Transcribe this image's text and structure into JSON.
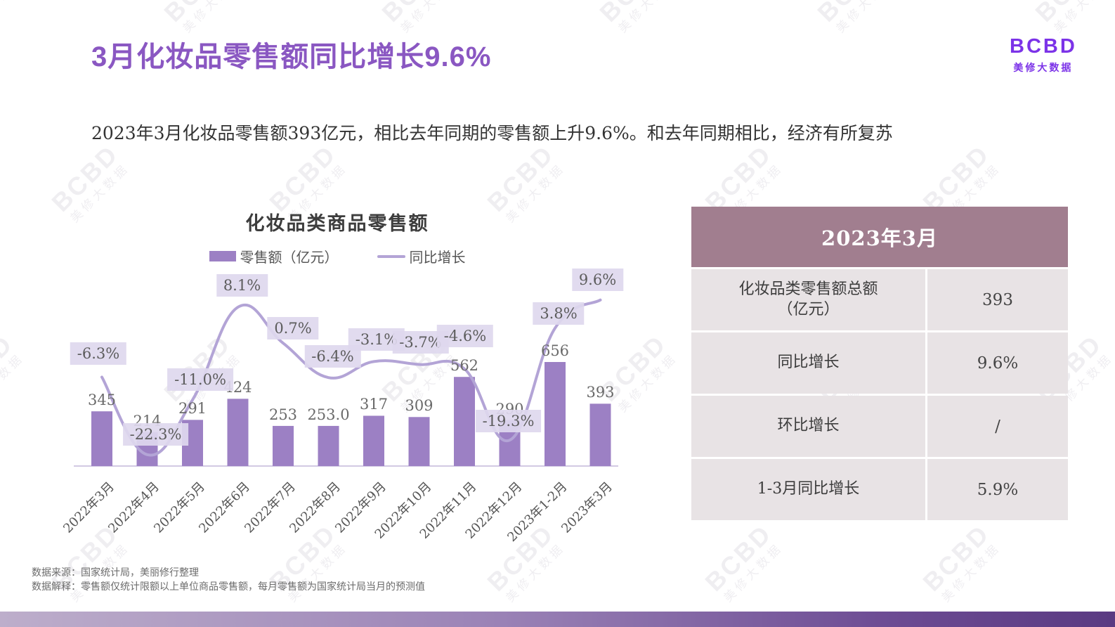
{
  "header": {
    "title": "3月化妆品零售额同比增长9.6%",
    "logo": {
      "brand": "BCBD",
      "subbrand": "美修大数据"
    }
  },
  "subtitle": "2023年3月化妆品零售额393亿元，相比去年同期的零售额上升9.6%。和去年同期相比，经济有所复苏",
  "watermark": {
    "brand": "BCBD",
    "subbrand": "美修大数据"
  },
  "chart_data": {
    "type": "bar",
    "title": "化妆品类商品零售额",
    "categories": [
      "2022年3月",
      "2022年4月",
      "2022年5月",
      "2022年6月",
      "2022年7月",
      "2022年8月",
      "2022年9月",
      "2022年10月",
      "2022年11月",
      "2022年12月",
      "2023年1-2月",
      "2023年3月"
    ],
    "series": [
      {
        "name": "零售额（亿元）",
        "type": "bar",
        "values": [
          345,
          214,
          291,
          424,
          253,
          253.0,
          317,
          309,
          562,
          290,
          656,
          393
        ],
        "value_labels": [
          "345",
          "214",
          "291",
          "424",
          "253",
          "253.0",
          "317",
          "309",
          "562",
          "290",
          "656",
          "393"
        ]
      },
      {
        "name": "同比增长",
        "type": "line",
        "values": [
          -6.3,
          -22.3,
          -11.0,
          8.1,
          0.7,
          -6.4,
          -3.1,
          -3.7,
          -4.6,
          -19.3,
          3.8,
          9.6
        ],
        "value_labels": [
          "-6.3%",
          "-22.3%",
          "-11.0%",
          "8.1%",
          "0.7%",
          "-6.4%",
          "-3.1%",
          "-3.7%",
          "-4.6%",
          "-19.3%",
          "3.8%",
          "9.6%"
        ]
      }
    ],
    "legend": [
      {
        "label": "零售额（亿元）",
        "marker": "bar"
      },
      {
        "label": "同比增长",
        "marker": "line"
      }
    ],
    "legend_position": "top",
    "grid": false,
    "bar_axis_min": 0,
    "pct_axis_range": [
      -25,
      12
    ],
    "colors": {
      "bar": "#9c80c4",
      "line": "#b3a4d6",
      "label_bg": "#ded8ee",
      "axis": "#c3b7da"
    }
  },
  "table": {
    "header": "2023年3月",
    "rows": [
      {
        "label": "化妆品类零售额总额\n（亿元）",
        "value": "393"
      },
      {
        "label": "同比增长",
        "value": "9.6%"
      },
      {
        "label": "环比增长",
        "value": "/"
      },
      {
        "label": "1-3月同比增长",
        "value": "5.9%"
      }
    ]
  },
  "footer": {
    "line1": "数据来源：国家统计局，美丽修行整理",
    "line2": "数据解释：零售额仅统计限额以上单位商品零售额，每月零售额为国家统计局当月的预测值"
  },
  "colors": {
    "title": "#8a57c2",
    "logo": "#7c33e8",
    "table_header_bg": "#a17e8f",
    "table_row_bg": "#e8e3e5"
  }
}
